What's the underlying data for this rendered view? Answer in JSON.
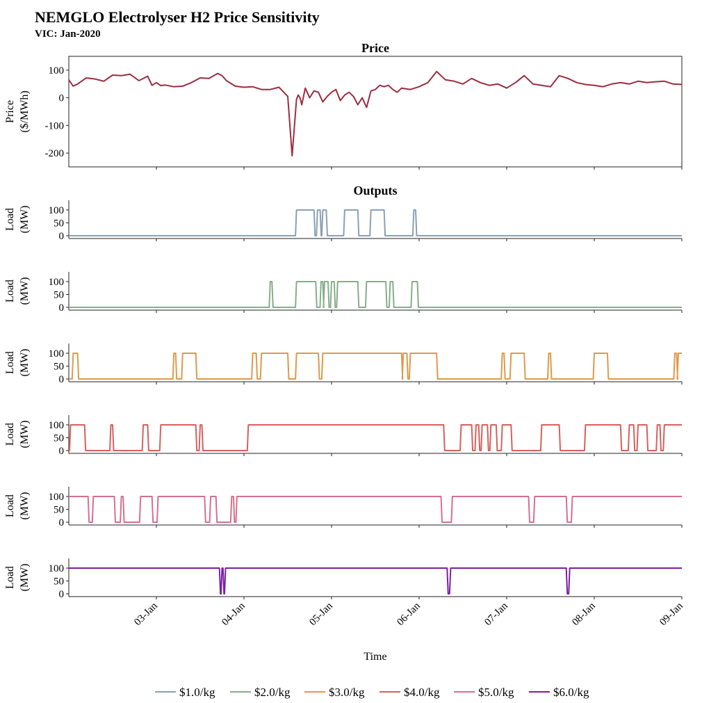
{
  "title": "NEMGLO Electrolyser H2 Price Sensitivity",
  "subtitle": "VIC: Jan-2020",
  "colors": {
    "price": "#9b2d40",
    "s1": "#8aa0b4",
    "s2": "#86ad8a",
    "s3": "#de9a4a",
    "s4": "#d6605d",
    "s5": "#d4708f",
    "s6": "#7b1fa2"
  },
  "chart_data": {
    "type": "line",
    "x_unit": "days since 02-Jan 00:00",
    "xlim": [
      0,
      7
    ],
    "x_ticks": [
      {
        "x": 1,
        "label": "03-Jan"
      },
      {
        "x": 2,
        "label": "04-Jan"
      },
      {
        "x": 3,
        "label": "05-Jan"
      },
      {
        "x": 4,
        "label": "06-Jan"
      },
      {
        "x": 5,
        "label": "07-Jan"
      },
      {
        "x": 6,
        "label": "08-Jan"
      },
      {
        "x": 7,
        "label": "09-Jan"
      }
    ],
    "xlabel": "Time",
    "price_panel": {
      "title": "Price",
      "ylabel_line1": "Price",
      "ylabel_line2": "($/MWh)",
      "ylim": [
        -250,
        150
      ],
      "y_ticks": [
        100,
        0,
        -100,
        -200
      ],
      "x": [
        0,
        0.05,
        0.1,
        0.2,
        0.3,
        0.4,
        0.5,
        0.6,
        0.7,
        0.8,
        0.9,
        0.95,
        1.0,
        1.05,
        1.1,
        1.2,
        1.3,
        1.4,
        1.5,
        1.6,
        1.7,
        1.75,
        1.8,
        1.9,
        2.0,
        2.1,
        2.2,
        2.3,
        2.4,
        2.5,
        2.55,
        2.6,
        2.62,
        2.64,
        2.66,
        2.7,
        2.75,
        2.8,
        2.85,
        2.9,
        2.95,
        3.0,
        3.05,
        3.1,
        3.15,
        3.2,
        3.25,
        3.3,
        3.35,
        3.4,
        3.45,
        3.5,
        3.55,
        3.6,
        3.65,
        3.7,
        3.75,
        3.8,
        3.9,
        4.0,
        4.1,
        4.2,
        4.3,
        4.4,
        4.5,
        4.6,
        4.7,
        4.8,
        4.9,
        5.0,
        5.1,
        5.2,
        5.3,
        5.4,
        5.5,
        5.6,
        5.7,
        5.8,
        5.9,
        6.0,
        6.1,
        6.2,
        6.3,
        6.4,
        6.5,
        6.6,
        6.7,
        6.8,
        6.9,
        7.0
      ],
      "y": [
        65,
        42,
        50,
        72,
        68,
        60,
        82,
        80,
        85,
        62,
        78,
        45,
        55,
        44,
        46,
        40,
        42,
        55,
        72,
        70,
        88,
        80,
        62,
        42,
        38,
        40,
        30,
        30,
        38,
        5,
        -210,
        -5,
        10,
        0,
        -25,
        35,
        0,
        25,
        20,
        -15,
        5,
        20,
        30,
        -10,
        10,
        20,
        5,
        -25,
        0,
        -35,
        25,
        30,
        45,
        40,
        45,
        30,
        20,
        35,
        30,
        40,
        55,
        95,
        65,
        60,
        50,
        70,
        55,
        45,
        50,
        35,
        55,
        80,
        50,
        45,
        40,
        80,
        70,
        55,
        48,
        45,
        40,
        50,
        55,
        50,
        60,
        55,
        58,
        60,
        50,
        48
      ]
    },
    "outputs_title": "Outputs",
    "load_ylabel_line1": "Load",
    "load_ylabel_line2": "(MW)",
    "load_ylim": [
      0,
      140
    ],
    "load_y_ticks": [
      100,
      50,
      0
    ],
    "series": [
      {
        "name": "$1.0/kg",
        "intervals": [
          [
            2.6,
            2.8
          ],
          [
            2.84,
            2.87
          ],
          [
            2.9,
            2.94
          ],
          [
            3.15,
            3.3
          ],
          [
            3.45,
            3.6
          ],
          [
            3.94,
            3.96
          ]
        ]
      },
      {
        "name": "$2.0/kg",
        "intervals": [
          [
            2.3,
            2.32
          ],
          [
            2.6,
            2.82
          ],
          [
            2.88,
            2.9
          ],
          [
            2.92,
            2.96
          ],
          [
            3.0,
            3.03
          ],
          [
            3.07,
            3.3
          ],
          [
            3.4,
            3.62
          ],
          [
            3.67,
            3.7
          ],
          [
            3.92,
            3.98
          ]
        ]
      },
      {
        "name": "$3.0/kg",
        "intervals": [
          [
            0.05,
            0.1
          ],
          [
            1.2,
            1.22
          ],
          [
            1.3,
            1.45
          ],
          [
            2.1,
            2.14
          ],
          [
            2.2,
            2.5
          ],
          [
            2.6,
            2.85
          ],
          [
            2.9,
            3.8
          ],
          [
            3.82,
            3.86
          ],
          [
            3.9,
            4.2
          ],
          [
            4.95,
            4.97
          ],
          [
            5.05,
            5.2
          ],
          [
            5.48,
            5.5
          ],
          [
            6.0,
            6.15
          ],
          [
            6.92,
            6.94
          ],
          [
            6.96,
            7.0
          ]
        ]
      },
      {
        "name": "$4.0/kg",
        "intervals": [
          [
            0.02,
            0.18
          ],
          [
            0.48,
            0.5
          ],
          [
            0.85,
            0.9
          ],
          [
            1.05,
            1.45
          ],
          [
            1.5,
            1.52
          ],
          [
            2.05,
            4.28
          ],
          [
            4.48,
            4.6
          ],
          [
            4.65,
            4.68
          ],
          [
            4.72,
            4.78
          ],
          [
            4.82,
            4.88
          ],
          [
            4.95,
            5.05
          ],
          [
            5.4,
            5.6
          ],
          [
            5.9,
            6.3
          ],
          [
            6.4,
            6.45
          ],
          [
            6.5,
            6.6
          ],
          [
            6.72,
            6.75
          ],
          [
            6.8,
            7.0
          ]
        ]
      },
      {
        "name": "$5.0/kg",
        "intervals": [
          [
            0,
            0.22
          ],
          [
            0.28,
            0.52
          ],
          [
            0.6,
            0.62
          ],
          [
            0.82,
            0.95
          ],
          [
            1.02,
            1.55
          ],
          [
            1.62,
            1.68
          ],
          [
            1.86,
            1.88
          ],
          [
            1.92,
            4.25
          ],
          [
            4.38,
            5.25
          ],
          [
            5.32,
            5.68
          ],
          [
            5.75,
            7.0
          ]
        ]
      },
      {
        "name": "$6.0/kg",
        "intervals": [
          [
            0,
            1.72
          ],
          [
            1.75,
            1.76
          ],
          [
            1.79,
            4.32
          ],
          [
            4.36,
            5.68
          ],
          [
            5.72,
            7.0
          ]
        ]
      }
    ],
    "legend_position": "bottom-center"
  }
}
